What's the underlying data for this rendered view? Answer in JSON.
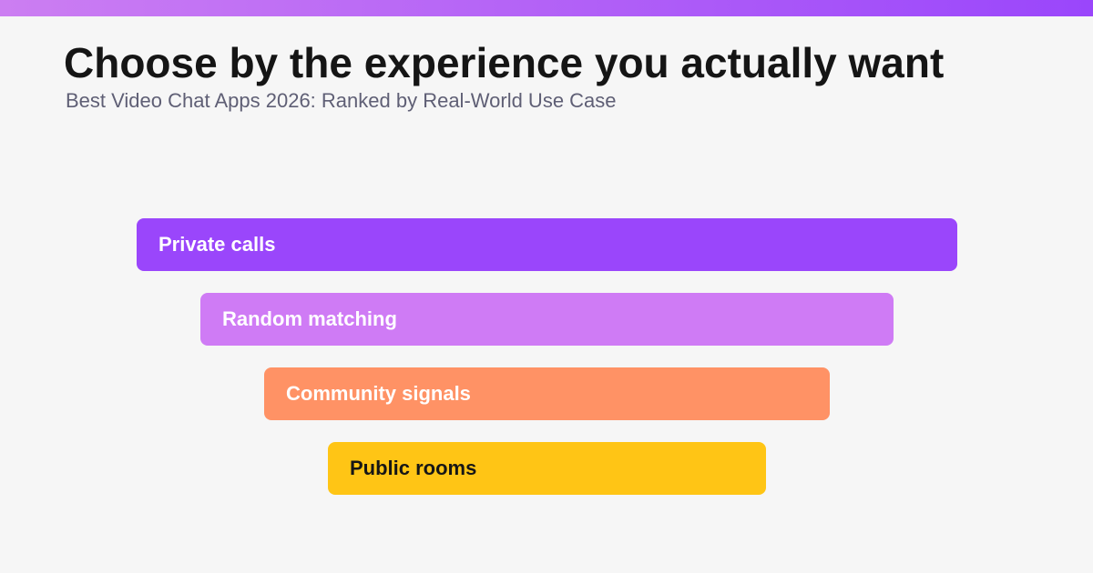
{
  "header": {
    "title": "Choose by the experience you actually want",
    "subtitle": "Best Video Chat Apps 2026: Ranked by Real-World Use Case"
  },
  "top_bar": {
    "gradient_start": "#cc7ef2",
    "gradient_end": "#9a46fb"
  },
  "funnel": {
    "items": [
      {
        "label": "Private calls",
        "color": "#9a46fb",
        "text_color": "#ffffff"
      },
      {
        "label": "Random matching",
        "color": "#cf7bf5",
        "text_color": "#ffffff"
      },
      {
        "label": "Community signals",
        "color": "#ff9265",
        "text_color": "#ffffff"
      },
      {
        "label": "Public rooms",
        "color": "#ffc515",
        "text_color": "#161616"
      }
    ]
  }
}
